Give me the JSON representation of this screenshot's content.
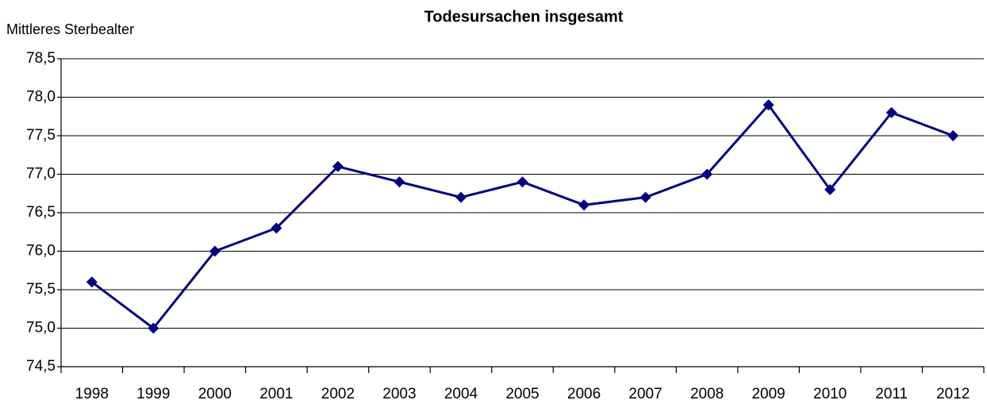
{
  "chart_data": {
    "type": "line",
    "title": "Todesursachen insgesamt",
    "y_label": "Mittleres Sterbealter",
    "categories": [
      "1998",
      "1999",
      "2000",
      "2001",
      "2002",
      "2003",
      "2004",
      "2005",
      "2006",
      "2007",
      "2008",
      "2009",
      "2010",
      "2011",
      "2012"
    ],
    "series": [
      {
        "color": "#000080",
        "values": [
          75.6,
          75.0,
          76.0,
          76.3,
          77.1,
          76.9,
          76.7,
          76.9,
          76.6,
          76.7,
          77.0,
          77.9,
          76.8,
          77.8,
          77.5
        ]
      }
    ],
    "ylim": [
      74.5,
      78.5
    ],
    "yticks": [
      {
        "value": 74.5,
        "label": "74,5"
      },
      {
        "value": 75.0,
        "label": "75,0"
      },
      {
        "value": 75.5,
        "label": "75,5"
      },
      {
        "value": 76.0,
        "label": "76,0"
      },
      {
        "value": 76.5,
        "label": "76,5"
      },
      {
        "value": 77.0,
        "label": "77,0"
      },
      {
        "value": 77.5,
        "label": "77,5"
      },
      {
        "value": 78.0,
        "label": "78,0"
      },
      {
        "value": 78.5,
        "label": "78,5"
      }
    ],
    "grid": true
  }
}
